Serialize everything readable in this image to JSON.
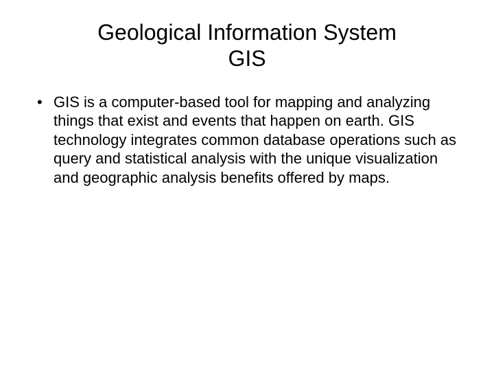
{
  "slide": {
    "title_line1": "Geological Information System",
    "title_line2": "GIS",
    "bullet_text": "GIS is a computer-based tool for mapping and analyzing things that exist and events that happen on earth. GIS technology integrates common database operations such as query and statistical analysis with the unique visualization and geographic analysis benefits offered by maps."
  },
  "styling": {
    "background_color": "#ffffff",
    "text_color": "#000000",
    "title_fontsize": 32,
    "body_fontsize": 22,
    "font_family": "Arial"
  }
}
